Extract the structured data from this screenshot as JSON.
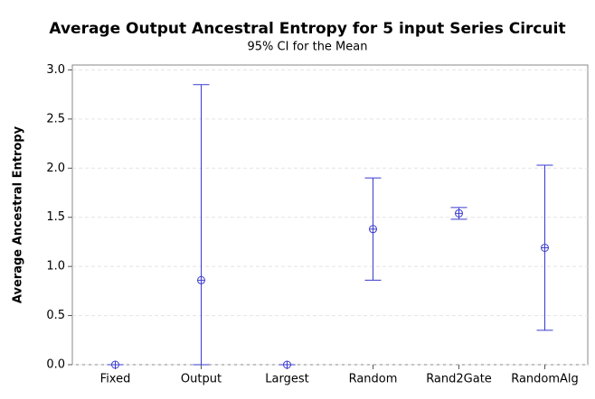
{
  "chart_data": {
    "type": "interval",
    "title": "Average Output Ancestral Entropy for 5 input Series Circuit",
    "subtitle": "95% CI for the Mean",
    "y_label": "Average Ancestral Entropy",
    "categories": [
      "Fixed",
      "Output",
      "Largest",
      "Random",
      "Rand2Gate",
      "RandomAlg"
    ],
    "values": [
      0,
      0.86,
      0,
      1.38,
      1.54,
      1.19
    ],
    "ci_low": [
      0,
      0,
      0,
      0.86,
      1.48,
      0.35
    ],
    "ci_high": [
      0,
      2.85,
      0,
      1.9,
      1.6,
      2.03
    ],
    "color": "#3a3ad0",
    "ylim": [
      0,
      3.05
    ],
    "yticks": [
      {
        "value": 0,
        "label": "0.0"
      },
      0.5,
      {
        "value": 1,
        "label": "1.0"
      },
      1.5,
      {
        "value": 2,
        "label": "2.0"
      },
      2.5,
      {
        "value": 3,
        "label": "3.0"
      }
    ],
    "grid": true
  }
}
